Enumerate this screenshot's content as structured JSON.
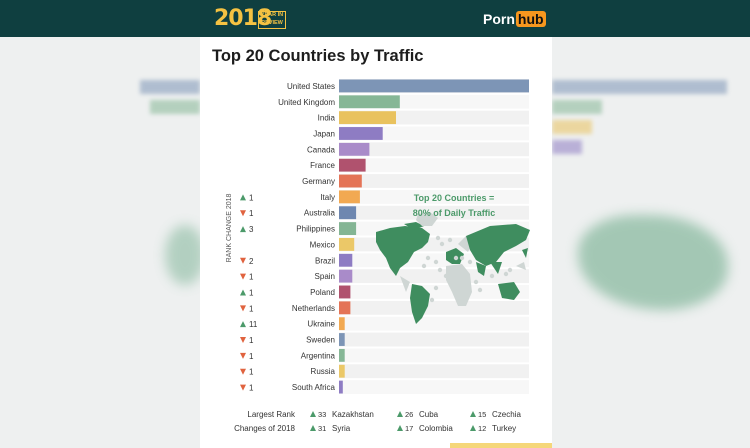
{
  "header": {
    "year": "2018",
    "year_in_review": "YEAR IN REVIEW",
    "logo_left": "Porn",
    "logo_right": "hub"
  },
  "chart_data": {
    "type": "bar",
    "title": "Top 20 Countries by Traffic",
    "ylabel": "RANK CHANGE 2018",
    "categories": [
      "United States",
      "United Kingdom",
      "India",
      "Japan",
      "Canada",
      "France",
      "Germany",
      "Italy",
      "Australia",
      "Philippines",
      "Mexico",
      "Brazil",
      "Spain",
      "Poland",
      "Netherlands",
      "Ukraine",
      "Sweden",
      "Argentina",
      "Russia",
      "South Africa"
    ],
    "values": [
      100,
      32,
      30,
      23,
      16,
      14,
      12,
      11,
      9,
      9,
      8,
      7,
      7,
      6,
      6,
      3,
      3,
      3,
      3,
      2
    ],
    "bar_colors": [
      "#7d95b6",
      "#86b796",
      "#e9c25e",
      "#8e7cc3",
      "#a98bc9",
      "#b0526e",
      "#e47457",
      "#f2a952",
      "#6e87b0",
      "#84b594",
      "#ebc868",
      "#8e7cc3",
      "#a98bc9",
      "#b0526e",
      "#e47457",
      "#f2a952",
      "#7d95b6",
      "#86b796",
      "#ebc868",
      "#8e7cc3"
    ],
    "rank_changes": [
      {
        "dir": "",
        "value": ""
      },
      {
        "dir": "",
        "value": ""
      },
      {
        "dir": "",
        "value": ""
      },
      {
        "dir": "",
        "value": ""
      },
      {
        "dir": "",
        "value": ""
      },
      {
        "dir": "",
        "value": ""
      },
      {
        "dir": "",
        "value": ""
      },
      {
        "dir": "up",
        "value": "1"
      },
      {
        "dir": "down",
        "value": "1"
      },
      {
        "dir": "up",
        "value": "3"
      },
      {
        "dir": "",
        "value": ""
      },
      {
        "dir": "down",
        "value": "2"
      },
      {
        "dir": "down",
        "value": "1"
      },
      {
        "dir": "up",
        "value": "1"
      },
      {
        "dir": "down",
        "value": "1"
      },
      {
        "dir": "up",
        "value": "11"
      },
      {
        "dir": "down",
        "value": "1"
      },
      {
        "dir": "down",
        "value": "1"
      },
      {
        "dir": "down",
        "value": "1"
      },
      {
        "dir": "down",
        "value": "1"
      }
    ],
    "annotation": [
      "Top 20 Countries =",
      "80% of Daily Traffic"
    ],
    "largest_rank_changes": {
      "label": [
        "Largest Rank",
        "Changes of 2018"
      ],
      "items": [
        {
          "value": "33",
          "country": "Kazakhstan"
        },
        {
          "value": "31",
          "country": "Syria"
        },
        {
          "value": "26",
          "country": "Cuba"
        },
        {
          "value": "17",
          "country": "Colombia"
        },
        {
          "value": "15",
          "country": "Czechia"
        },
        {
          "value": "12",
          "country": "Turkey"
        }
      ]
    },
    "colors": {
      "up": "#4c9a6a",
      "down": "#e0633f",
      "map_green": "#3f8d5f",
      "map_gray": "#cfd6d4",
      "annotation": "#4c9a6a"
    }
  }
}
